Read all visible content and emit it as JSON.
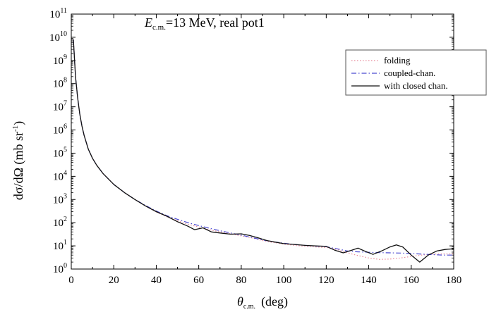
{
  "chart_data": {
    "type": "line",
    "title": {
      "e_symbol": "E",
      "e_subscript": "c.m.",
      "rest": "=13 MeV, real pot1"
    },
    "xlabel": {
      "symbol": "θ",
      "subscript": "c.m.",
      "unit": "(deg)"
    },
    "ylabel": {
      "main": "dσ/dΩ  (mb sr",
      "superscript": "-1",
      "close": ")"
    },
    "xlim": [
      0,
      180
    ],
    "ylim_log10": [
      0,
      11
    ],
    "y_scale": "log",
    "x_ticks": [
      0,
      20,
      40,
      60,
      80,
      100,
      120,
      140,
      160,
      180
    ],
    "x_tick_labels": [
      "0",
      "20",
      "40",
      "60",
      "80",
      "100",
      "120",
      "140",
      "160",
      "180"
    ],
    "y_ticks_log10": [
      0,
      1,
      2,
      3,
      4,
      5,
      6,
      7,
      8,
      9,
      10,
      11
    ],
    "y_tick_base": "10",
    "y_tick_exponents": [
      "0",
      "1",
      "2",
      "3",
      "4",
      "5",
      "6",
      "7",
      "8",
      "9",
      "10",
      "11"
    ],
    "grid": false,
    "legend_position": "top-right",
    "series": [
      {
        "name": "folding",
        "color": "#e88a9a",
        "style": "dotted",
        "x": [
          1,
          2,
          3,
          4,
          5,
          6,
          8,
          10,
          12,
          15,
          20,
          25,
          30,
          35,
          40,
          45,
          50,
          55,
          60,
          65,
          70,
          75,
          80,
          85,
          90,
          95,
          100,
          105,
          110,
          115,
          120,
          125,
          130,
          135,
          140,
          145,
          150,
          155,
          160,
          165,
          170,
          175,
          180
        ],
        "y": [
          8000000000.0,
          200000000.0,
          25000000.0,
          5000000.0,
          1500000.0,
          600000.0,
          150000.0,
          60000.0,
          30000.0,
          13000.0,
          4500.0,
          2000.0,
          1000.0,
          520,
          290,
          180,
          120,
          85,
          65,
          50,
          40,
          33,
          27,
          22,
          17,
          14,
          12,
          10.5,
          9.5,
          9,
          8.5,
          7,
          5,
          3.8,
          3,
          2.6,
          2.7,
          3,
          3.5,
          4,
          4.4,
          4.5,
          4.5
        ]
      },
      {
        "name": "coupled-chan.",
        "color": "#4a4ad0",
        "style": "dashdot",
        "x": [
          1,
          2,
          3,
          4,
          5,
          6,
          8,
          10,
          12,
          15,
          20,
          25,
          30,
          35,
          40,
          45,
          50,
          55,
          60,
          65,
          70,
          75,
          80,
          85,
          90,
          95,
          100,
          105,
          110,
          115,
          120,
          125,
          130,
          135,
          140,
          145,
          150,
          155,
          160,
          165,
          170,
          175,
          180
        ],
        "y": [
          8000000000.0,
          200000000.0,
          25000000.0,
          5000000.0,
          1500000.0,
          600000.0,
          150000.0,
          60000.0,
          30000.0,
          13000.0,
          4500.0,
          2000.0,
          1000.0,
          550,
          320,
          200,
          140,
          100,
          75,
          58,
          45,
          36,
          29,
          23,
          18,
          15,
          13,
          11.5,
          10.5,
          9.8,
          9.2,
          7.5,
          6,
          5.5,
          5.3,
          5.1,
          5,
          4.9,
          4.7,
          4.4,
          4.2,
          4,
          4
        ]
      },
      {
        "name": "with closed chan.",
        "color": "#111111",
        "style": "solid",
        "x": [
          1,
          2,
          3,
          4,
          5,
          6,
          8,
          10,
          12,
          15,
          20,
          25,
          30,
          35,
          40,
          45,
          50,
          55,
          58,
          62,
          66,
          70,
          75,
          80,
          84,
          88,
          92,
          96,
          100,
          105,
          110,
          115,
          120,
          124,
          128,
          132,
          135,
          138,
          142,
          146,
          150,
          153,
          156,
          160,
          164,
          168,
          172,
          176,
          180
        ],
        "y": [
          8000000000.0,
          200000000.0,
          25000000.0,
          5000000.0,
          1500000.0,
          600000.0,
          150000.0,
          60000.0,
          30000.0,
          13000.0,
          4500.0,
          2000.0,
          1000.0,
          520,
          300,
          190,
          110,
          70,
          50,
          60,
          40,
          36,
          32,
          33,
          28,
          22,
          17,
          14.5,
          12.5,
          11.5,
          10.5,
          10,
          9.5,
          6.5,
          5,
          6.5,
          8,
          6,
          4.3,
          6,
          9,
          11,
          9,
          4,
          2,
          4,
          6,
          7,
          7.5
        ]
      }
    ]
  }
}
